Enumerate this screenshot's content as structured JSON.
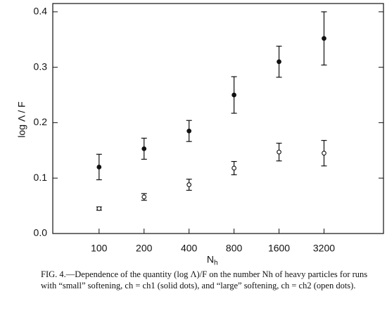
{
  "chart_data": {
    "type": "errorbar",
    "ylabel": "log Λ / F",
    "xlabel_base": "N",
    "xlabel_sub": "h",
    "x": [
      100,
      200,
      400,
      800,
      1600,
      3200
    ],
    "xscale": "log",
    "xlim": [
      49,
      8000
    ],
    "xticks": [
      100,
      200,
      400,
      800,
      1600,
      3200
    ],
    "ylim": [
      0,
      0.415
    ],
    "yticks": [
      {
        "value": 0,
        "label": "0.0"
      },
      0.1,
      0.2,
      0.3,
      0.4
    ],
    "series": [
      {
        "marker": "filled",
        "color": "#111",
        "values": [
          0.12,
          0.153,
          0.185,
          0.25,
          0.31,
          0.352
        ],
        "errors": [
          0.023,
          0.019,
          0.019,
          0.033,
          0.028,
          0.048
        ]
      },
      {
        "marker": "open",
        "color": "#111",
        "values": [
          0.045,
          0.066,
          0.088,
          0.118,
          0.147,
          0.145
        ],
        "errors": [
          0.003,
          0.006,
          0.01,
          0.012,
          0.016,
          0.023
        ]
      }
    ],
    "caption": "FIG. 4.—Dependence of the quantity (log Λ)/F on the number Nh of heavy particles for runs with “small” softening, ch = ch1 (solid dots), and “large” softening, ch = ch2 (open dots)."
  }
}
